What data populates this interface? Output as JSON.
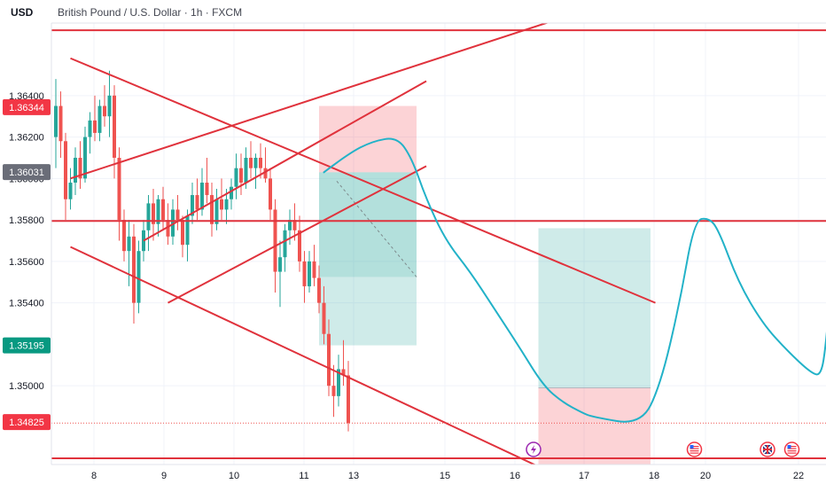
{
  "header": {
    "currency": "USD",
    "title": "British Pound / U.S. Dollar · 1h · FXCM"
  },
  "colors": {
    "bull": "#26a69a",
    "bear": "#ef5350",
    "trendline": "#e0323c",
    "projection": "#22b2c8",
    "gain_zone": "rgba(38,166,154,0.22)",
    "gain_zone_dark": "rgba(38,166,154,0.35)",
    "loss_zone": "rgba(242,54,69,0.22)",
    "grid": "#f0f3fa",
    "axis_text": "#131722"
  },
  "chart_data": {
    "type": "candlestick",
    "symbol": "GBPUSD",
    "x_ticks": [
      "8",
      "9",
      "10",
      "11",
      "13",
      "15",
      "16",
      "17",
      "18",
      "20",
      "22"
    ],
    "y_ticks": [
      "1.36400",
      "1.36200",
      "1.36000",
      "1.35800",
      "1.35600",
      "1.35400",
      "1.35000"
    ],
    "ylim": [
      1.3462,
      1.3675
    ],
    "price_labels": [
      {
        "id": "red-top",
        "value": 1.36344,
        "text": "1.36344",
        "color": "#f23645"
      },
      {
        "id": "gray",
        "value": 1.36031,
        "text": "1.36031",
        "color": "#6a6d78"
      },
      {
        "id": "green",
        "value": 1.35195,
        "text": "1.35195",
        "color": "#089981"
      },
      {
        "id": "red-current",
        "value": 1.34825,
        "text": "1.34825",
        "color": "#f23645"
      }
    ],
    "candles": [
      [
        1.362,
        1.3648,
        1.3605,
        1.3635
      ],
      [
        1.3635,
        1.3642,
        1.361,
        1.3618
      ],
      [
        1.3618,
        1.3622,
        1.358,
        1.359
      ],
      [
        1.359,
        1.3605,
        1.3585,
        1.3598
      ],
      [
        1.3598,
        1.3615,
        1.3592,
        1.361
      ],
      [
        1.361,
        1.3618,
        1.3595,
        1.36
      ],
      [
        1.36,
        1.3625,
        1.3598,
        1.362
      ],
      [
        1.362,
        1.3632,
        1.3612,
        1.3628
      ],
      [
        1.3628,
        1.364,
        1.3618,
        1.3622
      ],
      [
        1.3622,
        1.3638,
        1.3618,
        1.3635
      ],
      [
        1.3635,
        1.3645,
        1.3625,
        1.363
      ],
      [
        1.363,
        1.3652,
        1.362,
        1.364
      ],
      [
        1.364,
        1.3645,
        1.36,
        1.361
      ],
      [
        1.361,
        1.3615,
        1.357,
        1.358
      ],
      [
        1.358,
        1.3585,
        1.356,
        1.3565
      ],
      [
        1.3565,
        1.358,
        1.3548,
        1.3572
      ],
      [
        1.3572,
        1.3578,
        1.353,
        1.354
      ],
      [
        1.354,
        1.357,
        1.3535,
        1.3565
      ],
      [
        1.3565,
        1.358,
        1.356,
        1.3575
      ],
      [
        1.3575,
        1.3592,
        1.3565,
        1.3588
      ],
      [
        1.3588,
        1.3595,
        1.357,
        1.3578
      ],
      [
        1.3578,
        1.3592,
        1.3572,
        1.359
      ],
      [
        1.359,
        1.3596,
        1.3575,
        1.358
      ],
      [
        1.358,
        1.3588,
        1.3568,
        1.3572
      ],
      [
        1.3572,
        1.359,
        1.3568,
        1.3585
      ],
      [
        1.3585,
        1.3592,
        1.3575,
        1.358
      ],
      [
        1.358,
        1.3582,
        1.3562,
        1.3568
      ],
      [
        1.3568,
        1.3585,
        1.356,
        1.3582
      ],
      [
        1.3582,
        1.3598,
        1.3578,
        1.3592
      ],
      [
        1.3592,
        1.36,
        1.358,
        1.3585
      ],
      [
        1.3585,
        1.3605,
        1.3582,
        1.3598
      ],
      [
        1.3598,
        1.361,
        1.3588,
        1.3592
      ],
      [
        1.3592,
        1.3598,
        1.3572,
        1.3578
      ],
      [
        1.3578,
        1.3595,
        1.3575,
        1.359
      ],
      [
        1.359,
        1.36,
        1.358,
        1.3585
      ],
      [
        1.3585,
        1.3595,
        1.3578,
        1.359
      ],
      [
        1.359,
        1.36,
        1.3585,
        1.3596
      ],
      [
        1.3596,
        1.3612,
        1.359,
        1.3605
      ],
      [
        1.3605,
        1.3612,
        1.3592,
        1.3598
      ],
      [
        1.3598,
        1.3615,
        1.3595,
        1.361
      ],
      [
        1.361,
        1.3618,
        1.36,
        1.3605
      ],
      [
        1.3605,
        1.3612,
        1.3595,
        1.361
      ],
      [
        1.361,
        1.3617,
        1.36,
        1.3605
      ],
      [
        1.3605,
        1.3615,
        1.3598,
        1.36
      ],
      [
        1.36,
        1.3605,
        1.358,
        1.3585
      ],
      [
        1.3585,
        1.359,
        1.3545,
        1.3555
      ],
      [
        1.3555,
        1.357,
        1.3538,
        1.3562
      ],
      [
        1.3562,
        1.3578,
        1.3555,
        1.3575
      ],
      [
        1.3575,
        1.3585,
        1.3568,
        1.358
      ],
      [
        1.358,
        1.3588,
        1.357,
        1.3575
      ],
      [
        1.3575,
        1.3582,
        1.3555,
        1.356
      ],
      [
        1.356,
        1.3565,
        1.354,
        1.3548
      ],
      [
        1.3548,
        1.3565,
        1.3545,
        1.356
      ],
      [
        1.356,
        1.3568,
        1.3548,
        1.3552
      ],
      [
        1.3552,
        1.3558,
        1.3535,
        1.354
      ],
      [
        1.354,
        1.3548,
        1.352,
        1.3525
      ],
      [
        1.3525,
        1.3532,
        1.3495,
        1.35
      ],
      [
        1.35,
        1.351,
        1.3485,
        1.3495
      ],
      [
        1.3495,
        1.3515,
        1.349,
        1.3508
      ],
      [
        1.3508,
        1.3522,
        1.35,
        1.3505
      ],
      [
        1.3505,
        1.3512,
        1.3478,
        1.3482
      ]
    ],
    "horizontal_lines": [
      1.36715,
      1.35795,
      1.3465
    ],
    "trendlines": [
      {
        "from": [
          3,
          1.36
        ],
        "to": [
          111,
          1.3683
        ]
      },
      {
        "from": [
          3,
          1.3658
        ],
        "to": [
          123,
          1.354
        ]
      },
      {
        "from": [
          3,
          1.3567
        ],
        "to": [
          109,
          1.345
        ]
      },
      {
        "from": [
          18,
          1.357
        ],
        "to": [
          76,
          1.3647
        ]
      },
      {
        "from": [
          23,
          1.354
        ],
        "to": [
          76,
          1.3606
        ]
      }
    ],
    "zones": [
      {
        "kind": "loss",
        "x": [
          54,
          74
        ],
        "y": [
          1.3603,
          1.3635
        ]
      },
      {
        "kind": "gain_dark",
        "x": [
          54,
          74
        ],
        "y": [
          1.35525,
          1.3603
        ]
      },
      {
        "kind": "gain",
        "x": [
          54,
          74
        ],
        "y": [
          1.35195,
          1.35525
        ]
      },
      {
        "kind": "gain",
        "x": [
          99,
          122
        ],
        "y": [
          1.3499,
          1.3576
        ]
      },
      {
        "kind": "loss",
        "x": [
          99,
          122
        ],
        "y": [
          1.3456,
          1.3499
        ]
      }
    ],
    "projection_path": [
      [
        55,
        1.3603
      ],
      [
        60,
        1.3612
      ],
      [
        65,
        1.3618
      ],
      [
        70,
        1.362
      ],
      [
        73,
        1.361
      ],
      [
        76,
        1.359
      ],
      [
        80,
        1.357
      ],
      [
        85,
        1.3555
      ],
      [
        90,
        1.3537
      ],
      [
        95,
        1.3519
      ],
      [
        100,
        1.35
      ],
      [
        104,
        1.3492
      ],
      [
        108,
        1.3487
      ],
      [
        110,
        1.3485
      ],
      [
        120,
        1.3481
      ],
      [
        124,
        1.35
      ],
      [
        128,
        1.354
      ],
      [
        131,
        1.358
      ],
      [
        134,
        1.3581
      ],
      [
        136,
        1.3575
      ],
      [
        140,
        1.355
      ],
      [
        145,
        1.353
      ],
      [
        150,
        1.3517
      ],
      [
        155,
        1.3506
      ],
      [
        157,
        1.3505
      ],
      [
        158,
        1.352
      ],
      [
        159,
        1.355
      ],
      [
        162,
        1.3568
      ],
      [
        166,
        1.3578
      ]
    ],
    "events": [
      {
        "type": "lightning",
        "x": 98
      },
      {
        "type": "us",
        "x": 131
      },
      {
        "type": "uk-us",
        "x": 146
      },
      {
        "type": "us",
        "x": 151
      },
      {
        "type": "uk-us",
        "x": 166
      },
      {
        "type": "us",
        "x": 171
      }
    ]
  }
}
